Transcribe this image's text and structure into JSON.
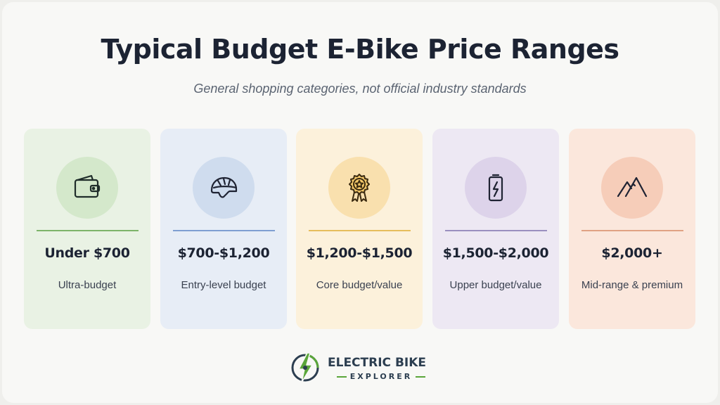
{
  "title": "Typical Budget E-Bike Price Ranges",
  "subtitle": "General shopping categories, not official industry standards",
  "cards": [
    {
      "price": "Under $700",
      "label": "Ultra-budget",
      "icon": "wallet-icon",
      "bg": "#e9f2e4",
      "circle": "#d4e8cb",
      "accent": "#7db46a"
    },
    {
      "price": "$700-$1,200",
      "label": "Entry-level budget",
      "icon": "helmet-icon",
      "bg": "#e7edf6",
      "circle": "#cfdcee",
      "accent": "#7f9fd2"
    },
    {
      "price": "$1,200-$1,500",
      "label": "Core budget/value",
      "icon": "award-badge-icon",
      "bg": "#fcf1db",
      "circle": "#f9e0ae",
      "accent": "#e6bd5c"
    },
    {
      "price": "$1,500-$2,000",
      "label": "Upper budget/value",
      "icon": "battery-icon",
      "bg": "#ede8f3",
      "circle": "#ddd3ea",
      "accent": "#9a8fbf"
    },
    {
      "price": "$2,000+",
      "label": "Mid-range & premium",
      "icon": "mountain-icon",
      "bg": "#fbe7dc",
      "circle": "#f6cdb9",
      "accent": "#e0a284"
    }
  ],
  "logo": {
    "name": "ELECTRIC BIKE",
    "sub": "EXPLORER",
    "icon": "lightning-wheel-icon",
    "green": "#5aa63a",
    "navy": "#2c3e50"
  }
}
